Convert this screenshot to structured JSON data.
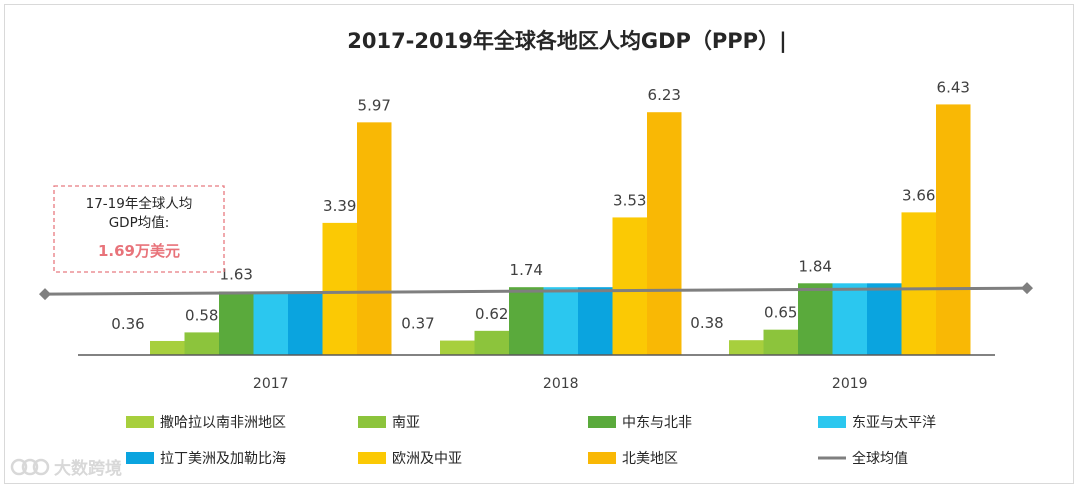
{
  "chart_data": {
    "type": "bar",
    "title": "2017-2019年全球各地区人均GDP（PPP）|",
    "categories": [
      "2017",
      "2018",
      "2019"
    ],
    "series": [
      {
        "name": "撒哈拉以南非洲地区",
        "values": [
          0.36,
          0.37,
          0.38
        ],
        "color": "#a7cf3d",
        "label": true
      },
      {
        "name": "南亚",
        "values": [
          0.58,
          0.62,
          0.65
        ],
        "color": "#8cc43c",
        "label": true
      },
      {
        "name": "中东与北非",
        "values": [
          1.63,
          1.74,
          1.84
        ],
        "color": "#5aaa3c",
        "label": true
      },
      {
        "name": "东亚与太平洋",
        "values": [
          1.63,
          1.74,
          1.84
        ],
        "color": "#2bc7ef",
        "label": false
      },
      {
        "name": "拉丁美洲及加勒比海",
        "values": [
          1.63,
          1.74,
          1.84
        ],
        "color": "#0aa4df",
        "label": false
      },
      {
        "name": "欧洲及中亚",
        "values": [
          3.39,
          3.53,
          3.66
        ],
        "color": "#fbc904",
        "label": true
      },
      {
        "name": "北美地区",
        "values": [
          5.97,
          6.23,
          6.43
        ],
        "color": "#f9b805",
        "label": true
      }
    ],
    "average_line": {
      "name": "全球均值",
      "value": 1.69,
      "color": "#7f7f7f"
    },
    "annotation": {
      "line1": "17-19年全球人均",
      "line2": "GDP均值:",
      "value": "1.69万美元",
      "value_color": "#e8737a",
      "border_color": "#e87a80"
    },
    "ylim": [
      0,
      6.8
    ],
    "xlabel": "",
    "ylabel": "",
    "grid": false,
    "legend_position": "bottom"
  },
  "watermark": {
    "text": "大数跨境"
  },
  "colors": {
    "axis": "#595959",
    "text": "#404040"
  }
}
